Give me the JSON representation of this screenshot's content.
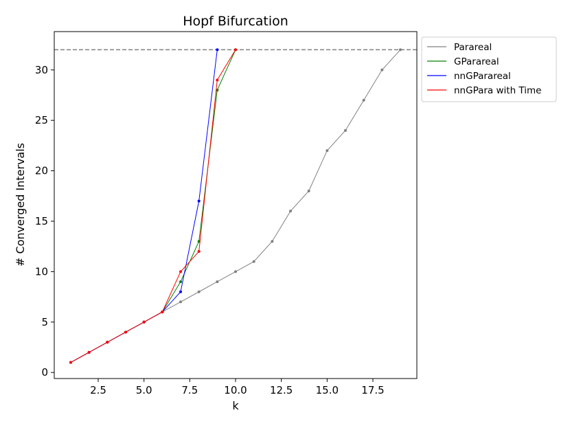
{
  "chart_data": {
    "type": "line",
    "title": "Hopf Bifurcation",
    "xlabel": "k",
    "ylabel": "# Converged Intervals",
    "xlim": [
      0.1,
      19.9
    ],
    "ylim": [
      -0.6,
      33.8
    ],
    "xticks": [
      2.5,
      5.0,
      7.5,
      10.0,
      12.5,
      15.0,
      17.5
    ],
    "yticks": [
      0,
      5,
      10,
      15,
      20,
      25,
      30
    ],
    "xtick_labels": [
      "2.5",
      "5.0",
      "7.5",
      "10.0",
      "12.5",
      "15.0",
      "17.5"
    ],
    "ytick_labels": [
      "0",
      "5",
      "10",
      "15",
      "20",
      "25",
      "30"
    ],
    "reference_line": {
      "y": 32,
      "style": "dashed",
      "color": "#808080"
    },
    "legend_position": "outside-top-right",
    "series": [
      {
        "name": "Parareal",
        "color": "#808080",
        "x": [
          1,
          2,
          3,
          4,
          5,
          6,
          7,
          8,
          9,
          10,
          11,
          12,
          13,
          14,
          15,
          16,
          17,
          18,
          19
        ],
        "y": [
          1,
          2,
          3,
          4,
          5,
          6,
          7,
          8,
          9,
          10,
          11,
          13,
          16,
          18,
          22,
          24,
          27,
          30,
          32
        ]
      },
      {
        "name": "GParareal",
        "color": "#008000",
        "x": [
          1,
          2,
          3,
          4,
          5,
          6,
          7,
          8,
          9,
          10
        ],
        "y": [
          1,
          2,
          3,
          4,
          5,
          6,
          9,
          13,
          28,
          32
        ]
      },
      {
        "name": "nnGParareal",
        "color": "#0000ff",
        "x": [
          1,
          2,
          3,
          4,
          5,
          6,
          7,
          8,
          9
        ],
        "y": [
          1,
          2,
          3,
          4,
          5,
          6,
          8,
          17,
          32
        ]
      },
      {
        "name": "nnGPara with Time",
        "color": "#ff0000",
        "x": [
          1,
          2,
          3,
          4,
          5,
          6,
          7,
          8,
          9,
          10
        ],
        "y": [
          1,
          2,
          3,
          4,
          5,
          6,
          10,
          12,
          29,
          32
        ]
      }
    ]
  }
}
